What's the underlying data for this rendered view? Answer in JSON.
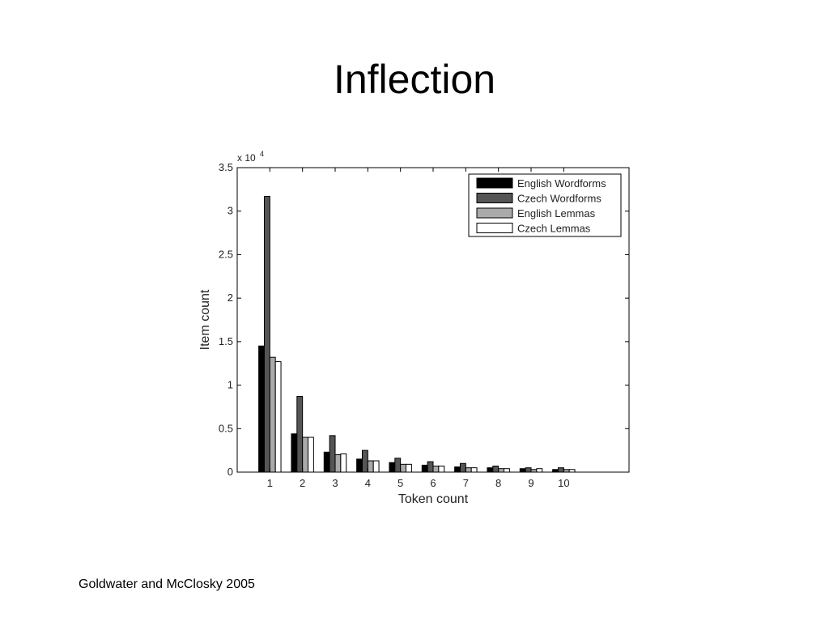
{
  "slide_title": "Inflection",
  "footer": "Goldwater and McClosky 2005",
  "chart_data": {
    "type": "bar",
    "x_label": "Token count",
    "y_label": "Item count",
    "y_multiplier": "x 10",
    "y_multiplier_exponent": "4",
    "x": [
      1,
      2,
      3,
      4,
      5,
      6,
      7,
      8,
      9,
      10
    ],
    "xlim": [
      0,
      12
    ],
    "xticks": [
      1,
      2,
      3,
      4,
      5,
      6,
      7,
      8,
      9,
      10
    ],
    "ylim": [
      0,
      3.5
    ],
    "yticks": [
      0,
      0.5,
      1,
      1.5,
      2,
      2.5,
      3,
      3.5
    ],
    "legend_position": "upper right",
    "series": [
      {
        "name": "English Wordforms",
        "color": "#000000",
        "values": [
          1.45,
          0.44,
          0.23,
          0.15,
          0.11,
          0.08,
          0.06,
          0.05,
          0.04,
          0.03
        ]
      },
      {
        "name": "Czech Wordforms",
        "color": "#555555",
        "values": [
          3.17,
          0.87,
          0.42,
          0.25,
          0.16,
          0.12,
          0.1,
          0.07,
          0.05,
          0.05
        ]
      },
      {
        "name": "English Lemmas",
        "color": "#aaaaaa",
        "values": [
          1.32,
          0.4,
          0.2,
          0.13,
          0.09,
          0.07,
          0.05,
          0.04,
          0.03,
          0.03
        ]
      },
      {
        "name": "Czech Lemmas",
        "color": "#ffffff",
        "values": [
          1.27,
          0.4,
          0.21,
          0.13,
          0.09,
          0.07,
          0.05,
          0.04,
          0.04,
          0.03
        ]
      }
    ]
  }
}
